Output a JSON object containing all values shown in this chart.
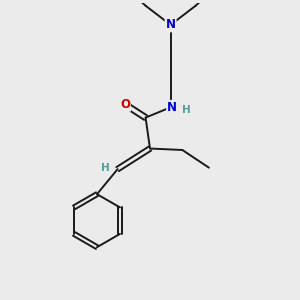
{
  "background_color": "#ebebeb",
  "atom_color_N": "#0000cc",
  "atom_color_O": "#cc0000",
  "atom_color_H": "#5a9a9a",
  "bond_color": "#1a1a1a",
  "font_size_atom": 8.5,
  "font_size_H": 7.5,
  "lw": 1.4,
  "fig_w": 3.0,
  "fig_h": 3.0,
  "dpi": 100,
  "xlim": [
    0,
    10
  ],
  "ylim": [
    0,
    10
  ]
}
